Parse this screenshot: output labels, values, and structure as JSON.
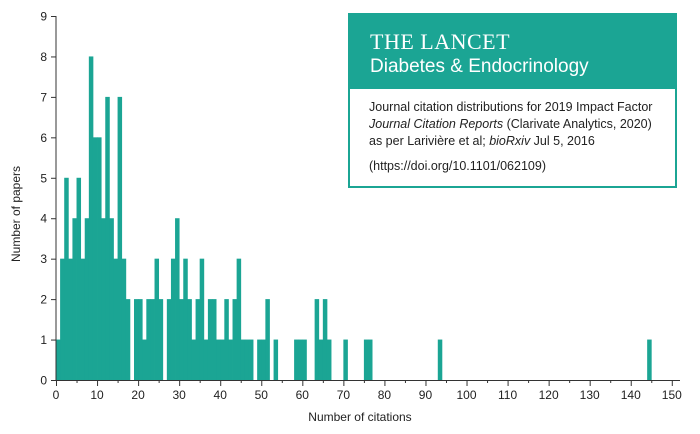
{
  "colors": {
    "bar": "#1ba594",
    "axis": "#333333",
    "header_bg": "#1ba594",
    "header_text": "#ffffff"
  },
  "info_box": {
    "journal_name": "THE LANCET",
    "journal_subtitle": "Diabetes & Endocrinology",
    "line1": "Journal citation distributions for 2019 Impact Factor",
    "line2_italic": "Journal Citation Reports",
    "line2_rest": " (Clarivate Analytics, 2020)",
    "line3_prefix": "as per Larivière et al; ",
    "line3_italic": "bioRxiv",
    "line3_suffix": " Jul 5, 2016",
    "doi": "(https://doi.org/10.1101/062109)"
  },
  "chart_data": {
    "type": "bar",
    "xlabel": "Number of citations",
    "ylabel": "Number of papers",
    "xlim": [
      0,
      152
    ],
    "ylim": [
      0,
      9
    ],
    "xticks": [
      0,
      10,
      20,
      30,
      40,
      50,
      60,
      70,
      80,
      90,
      100,
      110,
      120,
      130,
      140,
      150
    ],
    "yticks": [
      0,
      1,
      2,
      3,
      4,
      5,
      6,
      7,
      8,
      9
    ],
    "bin_width": 1,
    "bins": [
      0,
      1,
      2,
      3,
      4,
      5,
      6,
      7,
      8,
      9,
      10,
      11,
      12,
      13,
      14,
      15,
      16,
      17,
      18,
      19,
      20,
      21,
      22,
      23,
      24,
      25,
      26,
      27,
      28,
      29,
      30,
      31,
      32,
      33,
      34,
      35,
      36,
      37,
      38,
      39,
      40,
      41,
      42,
      43,
      44,
      45,
      46,
      47,
      48,
      49,
      50,
      51,
      52,
      53,
      54,
      55,
      56,
      57,
      58,
      59,
      60,
      61,
      62,
      63,
      64,
      65,
      66,
      67,
      68,
      69,
      70,
      71,
      72,
      73,
      74,
      75,
      76,
      77,
      78,
      79,
      80,
      81,
      82,
      83,
      84,
      85,
      86,
      87,
      88,
      89,
      90,
      91,
      92,
      93,
      94,
      95,
      96,
      97,
      98,
      99,
      100,
      101,
      102,
      103,
      104,
      105,
      106,
      107,
      108,
      109,
      110,
      111,
      112,
      113,
      114,
      115,
      116,
      117,
      118,
      119,
      120,
      121,
      122,
      123,
      124,
      125,
      126,
      127,
      128,
      129,
      130,
      131,
      132,
      133,
      134,
      135,
      136,
      137,
      138,
      139,
      140,
      141,
      142,
      143,
      144,
      145,
      146,
      147,
      148,
      149,
      150,
      151
    ],
    "counts": [
      1,
      3,
      5,
      3,
      4,
      5,
      3,
      4,
      8,
      6,
      6,
      4,
      7,
      4,
      3,
      7,
      3,
      2,
      0,
      2,
      2,
      1,
      2,
      2,
      3,
      2,
      0,
      2,
      3,
      4,
      2,
      3,
      2,
      1,
      2,
      3,
      1,
      2,
      2,
      1,
      1,
      2,
      1,
      2,
      3,
      1,
      1,
      1,
      0,
      1,
      1,
      2,
      0,
      1,
      0,
      0,
      0,
      0,
      1,
      1,
      1,
      0,
      0,
      2,
      1,
      2,
      1,
      0,
      0,
      0,
      1,
      0,
      0,
      0,
      0,
      1,
      1,
      0,
      0,
      0,
      0,
      0,
      0,
      0,
      0,
      0,
      0,
      0,
      0,
      0,
      0,
      0,
      0,
      1,
      0,
      0,
      0,
      0,
      0,
      0,
      0,
      0,
      0,
      0,
      0,
      0,
      0,
      0,
      0,
      0,
      0,
      0,
      0,
      0,
      0,
      0,
      0,
      0,
      0,
      0,
      0,
      0,
      0,
      0,
      0,
      0,
      0,
      0,
      0,
      0,
      0,
      0,
      0,
      0,
      0,
      0,
      0,
      0,
      0,
      0,
      0,
      0,
      0,
      0,
      1,
      0,
      0,
      0,
      0,
      0,
      0,
      0
    ]
  }
}
